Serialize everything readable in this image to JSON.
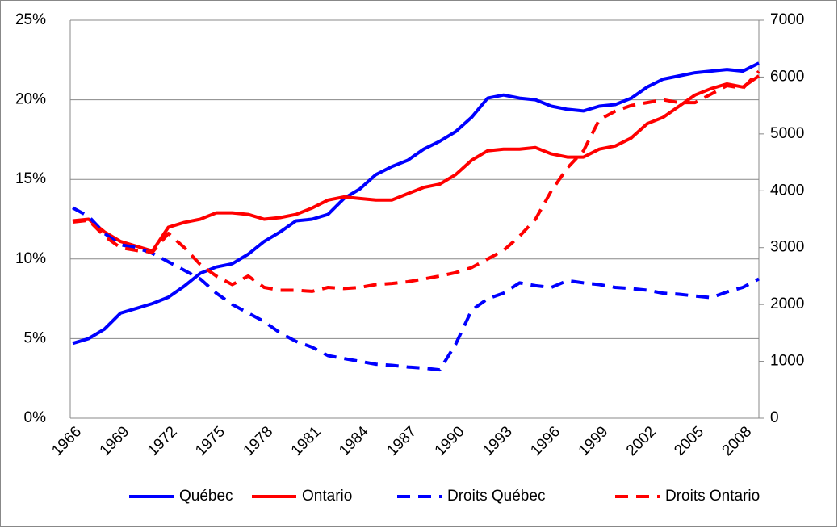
{
  "chart_data": {
    "type": "line",
    "categories": [
      "1966",
      null,
      null,
      "1969",
      null,
      null,
      "1972",
      null,
      null,
      "1975",
      null,
      null,
      "1978",
      null,
      null,
      "1981",
      null,
      null,
      "1984",
      null,
      null,
      "1987",
      null,
      null,
      "1990",
      null,
      null,
      "1993",
      null,
      null,
      "1996",
      null,
      null,
      "1999",
      null,
      null,
      "2002",
      null,
      null,
      "2005",
      null,
      null,
      "2008",
      null
    ],
    "series": [
      {
        "name": "Québec",
        "color": "#0000ff",
        "dash": false,
        "values": [
          4.7,
          5.0,
          5.6,
          6.6,
          6.9,
          7.2,
          7.6,
          8.3,
          9.1,
          9.5,
          9.7,
          10.3,
          11.1,
          11.7,
          12.4,
          12.5,
          12.8,
          13.8,
          14.4,
          15.3,
          15.8,
          16.2,
          16.9,
          17.4,
          18.0,
          18.9,
          20.1,
          20.3,
          20.1,
          20.0,
          19.6,
          19.4,
          19.3,
          19.6,
          19.7,
          20.1,
          20.8,
          21.3,
          21.5,
          21.7,
          21.8,
          21.9,
          21.8,
          22.3
        ]
      },
      {
        "name": "Ontario",
        "color": "#ff0000",
        "dash": false,
        "values": [
          12.4,
          12.5,
          11.7,
          11.1,
          10.8,
          10.5,
          12.0,
          12.3,
          12.5,
          12.9,
          12.9,
          12.8,
          12.5,
          12.6,
          12.8,
          13.2,
          13.7,
          13.9,
          13.8,
          13.7,
          13.7,
          14.1,
          14.5,
          14.7,
          15.3,
          16.2,
          16.8,
          16.9,
          16.9,
          17.0,
          16.6,
          16.4,
          16.4,
          16.9,
          17.1,
          17.6,
          18.5,
          18.9,
          19.6,
          20.3,
          20.7,
          21.0,
          20.8,
          21.5
        ]
      },
      {
        "name": "Droits Québec",
        "color": "#0000ff",
        "dash": true,
        "axis": "y2",
        "values": [
          3700,
          3550,
          3250,
          3050,
          3000,
          2900,
          2750,
          2600,
          2450,
          2200,
          2000,
          1850,
          1700,
          1500,
          1350,
          1250,
          1100,
          1050,
          1000,
          950,
          930,
          900,
          880,
          850,
          1300,
          1900,
          2100,
          2200,
          2380,
          2330,
          2300,
          2420,
          2380,
          2350,
          2300,
          2280,
          2250,
          2200,
          2180,
          2150,
          2120,
          2220,
          2300,
          2450
        ]
      },
      {
        "name": "Droits Ontario",
        "color": "#ff0000",
        "dash": true,
        "axis": "y2",
        "values": [
          3450,
          3480,
          3200,
          3000,
          2950,
          2920,
          3250,
          3000,
          2700,
          2500,
          2350,
          2500,
          2300,
          2250,
          2250,
          2230,
          2300,
          2280,
          2300,
          2350,
          2370,
          2400,
          2450,
          2500,
          2560,
          2650,
          2800,
          2950,
          3200,
          3500,
          4000,
          4400,
          4700,
          5250,
          5400,
          5500,
          5550,
          5600,
          5550,
          5550,
          5700,
          5850,
          5800,
          6100
        ]
      }
    ],
    "ylim": [
      0,
      25
    ],
    "yticks": [
      {
        "value": 0,
        "label": "0%"
      },
      {
        "value": 5,
        "label": "5%"
      },
      {
        "value": 10,
        "label": "10%"
      },
      {
        "value": 15,
        "label": "15%"
      },
      {
        "value": 20,
        "label": "20%"
      },
      {
        "value": 25,
        "label": "25%"
      }
    ],
    "y2lim": [
      0,
      7000
    ],
    "y2ticks": [
      0,
      1000,
      2000,
      3000,
      4000,
      5000,
      6000,
      7000
    ],
    "grid": true,
    "legend": "bottom"
  }
}
